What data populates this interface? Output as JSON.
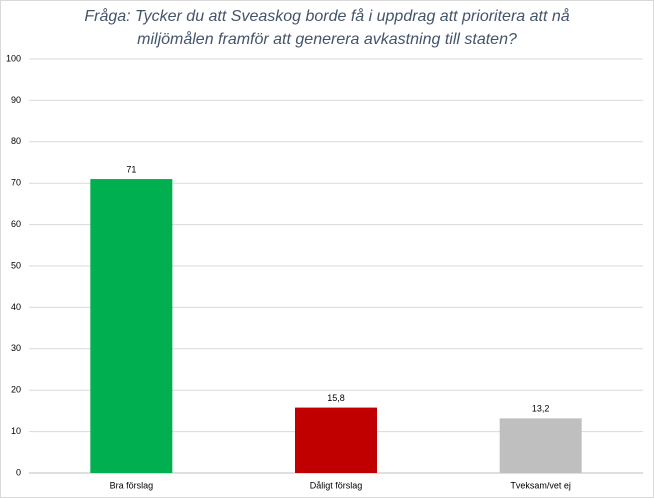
{
  "chart_data": {
    "type": "bar",
    "title": [
      "Fråga: Tycker du att Sveaskog borde få i uppdrag att prioritera att nå",
      "miljömålen framför att generera avkastning till staten?"
    ],
    "categories": [
      "Bra förslag",
      "Dåligt förslag",
      "Tveksam/vet ej"
    ],
    "values": [
      71,
      15.8,
      13.2
    ],
    "value_labels": [
      "71",
      "15,8",
      "13,2"
    ],
    "colors": [
      "#00b050",
      "#c00000",
      "#bfbfbf"
    ],
    "ylim": [
      0,
      100
    ],
    "yticks": [
      0,
      10,
      20,
      30,
      40,
      50,
      60,
      70,
      80,
      90,
      100
    ],
    "grid": true
  }
}
